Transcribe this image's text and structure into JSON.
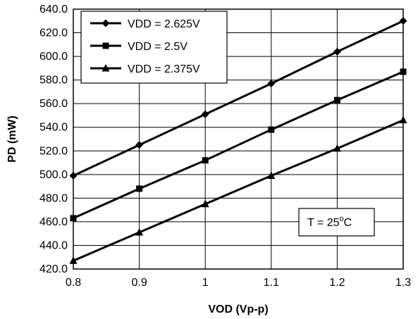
{
  "chart_data": {
    "type": "line",
    "title": "",
    "xlabel": "VOD (Vp-p)",
    "ylabel": "PD (mW)",
    "x": [
      0.8,
      0.9,
      1.0,
      1.1,
      1.2,
      1.3
    ],
    "x_tick_labels": [
      "0.8",
      "0.9",
      "1",
      "1.1",
      "1.2",
      "1.3"
    ],
    "y_tick_labels": [
      "420.0",
      "440.0",
      "460.0",
      "480.0",
      "500.0",
      "520.0",
      "540.0",
      "560.0",
      "580.0",
      "600.0",
      "620.0",
      "640.0"
    ],
    "xlim": [
      0.8,
      1.3
    ],
    "ylim": [
      420,
      640
    ],
    "grid": true,
    "legend_position": "top-left",
    "series": [
      {
        "name": "VDD = 2.625V",
        "marker": "diamond",
        "values": [
          499,
          525,
          551,
          577,
          604,
          630
        ]
      },
      {
        "name": "VDD = 2.5V",
        "marker": "square",
        "values": [
          463,
          488,
          512,
          538,
          563,
          587
        ]
      },
      {
        "name": "VDD = 2.375V",
        "marker": "triangle",
        "values": [
          427,
          451,
          475,
          499,
          522,
          546
        ]
      }
    ],
    "annotation": {
      "prefix": "T = 25",
      "degree": "o",
      "suffix": "C"
    }
  }
}
